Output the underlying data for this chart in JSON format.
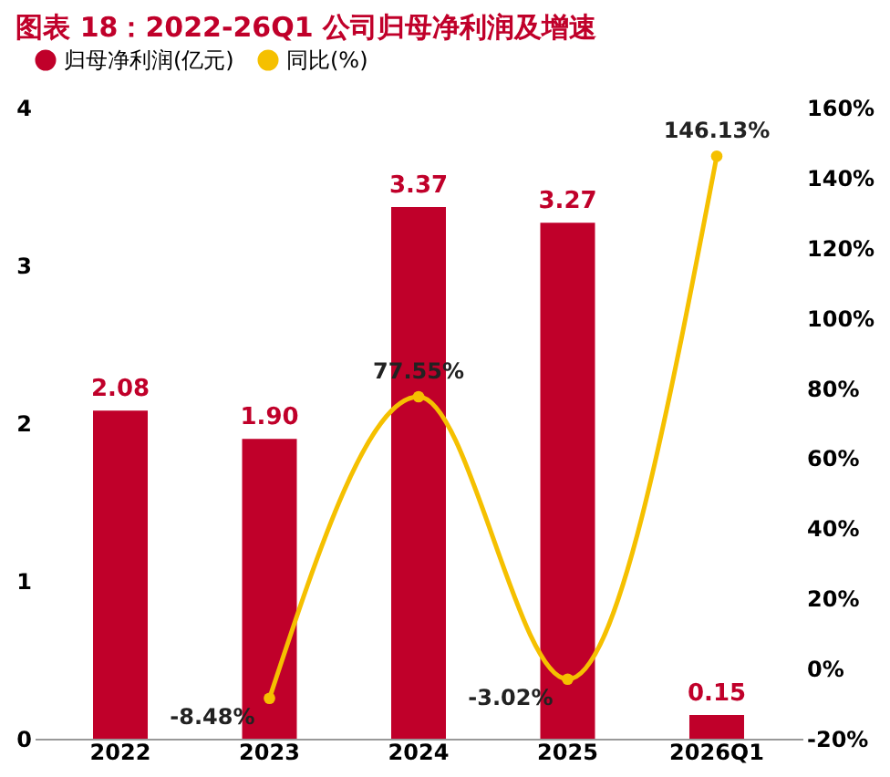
{
  "chart_data": {
    "type": "bar",
    "title": "图表 18：2022-26Q1 公司归母净利润及增速",
    "categories": [
      "2022",
      "2023",
      "2024",
      "2025",
      "2026Q1"
    ],
    "series": [
      {
        "name": "归母净利润(亿元)",
        "color": "#c0002a",
        "values": [
          2.08,
          1.9,
          3.37,
          3.27,
          0.15
        ],
        "value_labels": [
          "2.08",
          "1.90",
          "3.37",
          "3.27",
          "0.15"
        ]
      },
      {
        "name": "同比(%)",
        "type": "line",
        "axis": "y2",
        "color": "#f5c000",
        "values": [
          null,
          -8.48,
          77.55,
          -3.02,
          146.13
        ],
        "value_labels": [
          null,
          "-8.48%",
          "77.55%",
          "-3.02%",
          "146.13%"
        ]
      }
    ],
    "ylim": [
      0,
      4
    ],
    "yticks": [
      0,
      1,
      2,
      3,
      4
    ],
    "y2lim": [
      -20,
      160
    ],
    "y2ticks": [
      {
        "value": -20,
        "label": "-20%"
      },
      {
        "value": 0,
        "label": "0%"
      },
      {
        "value": 20,
        "label": "20%"
      },
      {
        "value": 40,
        "label": "40%"
      },
      {
        "value": 60,
        "label": "60%"
      },
      {
        "value": 80,
        "label": "80%"
      },
      {
        "value": 100,
        "label": "100%"
      },
      {
        "value": 120,
        "label": "120%"
      },
      {
        "value": 140,
        "label": "140%"
      },
      {
        "value": 160,
        "label": "160%"
      }
    ],
    "marker": "circle",
    "grid": false,
    "legend": "top"
  }
}
